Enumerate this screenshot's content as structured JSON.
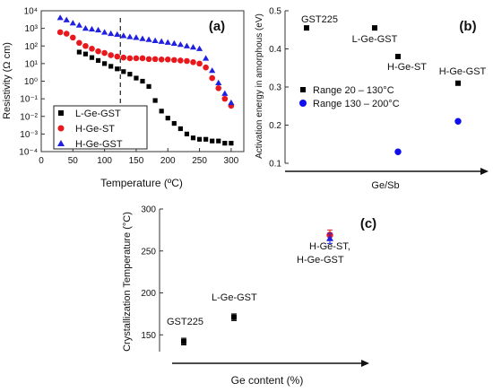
{
  "chart_data": [
    {
      "panel_label": "(a)",
      "type": "scatter",
      "xlabel": "Temperature (ºC)",
      "ylabel": "Resistivity (Ω cm)",
      "yscale": "log",
      "xlim": [
        0,
        320
      ],
      "ylim": [
        0.0001,
        10000
      ],
      "x_ticks": [
        "0",
        "50",
        "100",
        "150",
        "200",
        "250",
        "300"
      ],
      "y_ticks": [
        "10⁻⁴",
        "10⁻³",
        "10⁻²",
        "10⁻¹",
        "10⁰",
        "10¹",
        "10²",
        "10³",
        "10⁴"
      ],
      "reference_line_x": 125,
      "legend_position": "bottom-left",
      "series": [
        {
          "name": "L-Ge-GST",
          "marker": "square",
          "color": "#000000",
          "points": [
            [
              60,
              45
            ],
            [
              70,
              35
            ],
            [
              80,
              22
            ],
            [
              90,
              15
            ],
            [
              100,
              10
            ],
            [
              110,
              7
            ],
            [
              120,
              5
            ],
            [
              130,
              3.5
            ],
            [
              140,
              2.5
            ],
            [
              150,
              1.5
            ],
            [
              160,
              1.0
            ],
            [
              170,
              0.5
            ],
            [
              180,
              0.08
            ],
            [
              190,
              0.02
            ],
            [
              200,
              0.008
            ],
            [
              210,
              0.004
            ],
            [
              220,
              0.002
            ],
            [
              230,
              0.001
            ],
            [
              240,
              0.0006
            ],
            [
              250,
              0.0005
            ],
            [
              260,
              0.0005
            ],
            [
              270,
              0.0004
            ],
            [
              280,
              0.0004
            ],
            [
              290,
              0.0003
            ],
            [
              300,
              0.0003
            ]
          ]
        },
        {
          "name": "H-Ge-ST",
          "marker": "circle",
          "color": "#e8181c",
          "points": [
            [
              30,
              600
            ],
            [
              40,
              500
            ],
            [
              50,
              300
            ],
            [
              60,
              150
            ],
            [
              70,
              100
            ],
            [
              80,
              70
            ],
            [
              90,
              50
            ],
            [
              100,
              40
            ],
            [
              110,
              30
            ],
            [
              120,
              25
            ],
            [
              130,
              22
            ],
            [
              140,
              20
            ],
            [
              150,
              20
            ],
            [
              160,
              20
            ],
            [
              170,
              18
            ],
            [
              180,
              18
            ],
            [
              190,
              17
            ],
            [
              200,
              17
            ],
            [
              210,
              16
            ],
            [
              220,
              15
            ],
            [
              230,
              14
            ],
            [
              240,
              12
            ],
            [
              250,
              10
            ],
            [
              260,
              6
            ],
            [
              270,
              1.5
            ],
            [
              280,
              0.4
            ],
            [
              290,
              0.1
            ],
            [
              300,
              0.04
            ]
          ]
        },
        {
          "name": "H-Ge-GST",
          "marker": "triangle",
          "color": "#2020e0",
          "points": [
            [
              30,
              4000
            ],
            [
              40,
              3000
            ],
            [
              50,
              2000
            ],
            [
              60,
              1500
            ],
            [
              70,
              1000
            ],
            [
              80,
              900
            ],
            [
              90,
              800
            ],
            [
              100,
              600
            ],
            [
              110,
              500
            ],
            [
              120,
              450
            ],
            [
              130,
              380
            ],
            [
              140,
              330
            ],
            [
              150,
              300
            ],
            [
              160,
              260
            ],
            [
              170,
              230
            ],
            [
              180,
              200
            ],
            [
              190,
              180
            ],
            [
              200,
              160
            ],
            [
              210,
              140
            ],
            [
              220,
              120
            ],
            [
              230,
              100
            ],
            [
              240,
              85
            ],
            [
              250,
              70
            ],
            [
              260,
              20
            ],
            [
              270,
              4
            ],
            [
              280,
              0.8
            ],
            [
              290,
              0.2
            ],
            [
              300,
              0.06
            ]
          ]
        }
      ]
    },
    {
      "panel_label": "(b)",
      "type": "scatter",
      "xlabel": "Ge/Sb",
      "ylabel": "Activation energy in amorphous (eV)",
      "ylim": [
        0.1,
        0.5
      ],
      "y_ticks": [
        "0.1",
        "0.2",
        "0.3",
        "0.4",
        "0.5"
      ],
      "categories": [
        "GST225",
        "L-Ge-GST",
        "H-Ge-ST",
        "H-Ge-GST"
      ],
      "legend_position": "middle-left",
      "series": [
        {
          "name": "Range 20 – 130°C",
          "marker": "square",
          "color": "#000000",
          "values": [
            0.455,
            0.455,
            0.38,
            0.31
          ]
        },
        {
          "name": "Range 130 – 200°C",
          "marker": "circle",
          "color": "#1010ee",
          "values": [
            null,
            null,
            0.13,
            0.21
          ]
        }
      ]
    },
    {
      "panel_label": "(c)",
      "type": "scatter",
      "xlabel": "Ge content (%)",
      "ylabel": "Crystallization Temperature (°C)",
      "ylim": [
        130,
        300
      ],
      "y_ticks": [
        "150",
        "200",
        "250",
        "300"
      ],
      "categories": [
        "GST225",
        "L-Ge-GST",
        "H-Ge-ST",
        "H-Ge-GST"
      ],
      "annotations": [
        "GST225",
        "L-Ge-GST",
        "H-Ge-ST,",
        "H-Ge-GST"
      ],
      "series": [
        {
          "name": "GST225",
          "marker": "square",
          "color": "#000000",
          "values": [
            142
          ],
          "error": 4
        },
        {
          "name": "L-Ge-GST",
          "marker": "square",
          "color": "#000000",
          "values": [
            171
          ],
          "error": 4
        },
        {
          "name": "H-Ge-ST",
          "marker": "circle",
          "color": "#e8181c",
          "values": [
            269
          ],
          "error": 6
        },
        {
          "name": "H-Ge-GST",
          "marker": "triangle",
          "color": "#2020e0",
          "values": [
            265
          ],
          "error": 6
        }
      ]
    }
  ]
}
